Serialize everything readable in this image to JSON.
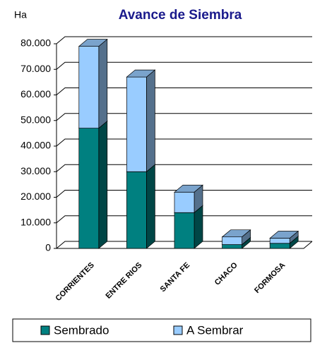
{
  "chart_data": {
    "type": "bar3d_stacked",
    "title": "Avance de Siembra",
    "y_axis_label": "Ha",
    "categories": [
      "CORRIENTES",
      "ENTRE RIOS",
      "SANTA FE",
      "CHACO",
      "FORMOSA"
    ],
    "series": [
      {
        "name": "Sembrado",
        "color": "#008080",
        "values": [
          47000,
          30000,
          14000,
          1500,
          2000
        ]
      },
      {
        "name": "A Sembrar",
        "color": "#99ccff",
        "values": [
          32000,
          37000,
          8000,
          3000,
          2000
        ]
      }
    ],
    "ylim": [
      0,
      80000
    ],
    "yticks": [
      {
        "value": 0,
        "label": "0"
      },
      {
        "value": 10000,
        "label": "10.000"
      },
      {
        "value": 20000,
        "label": "20.000"
      },
      {
        "value": 30000,
        "label": "30.000"
      },
      {
        "value": 40000,
        "label": "40.000"
      },
      {
        "value": 50000,
        "label": "50.000"
      },
      {
        "value": 60000,
        "label": "60.000"
      },
      {
        "value": 70000,
        "label": "70.000"
      },
      {
        "value": 80000,
        "label": "80.000"
      }
    ],
    "grid": true
  }
}
